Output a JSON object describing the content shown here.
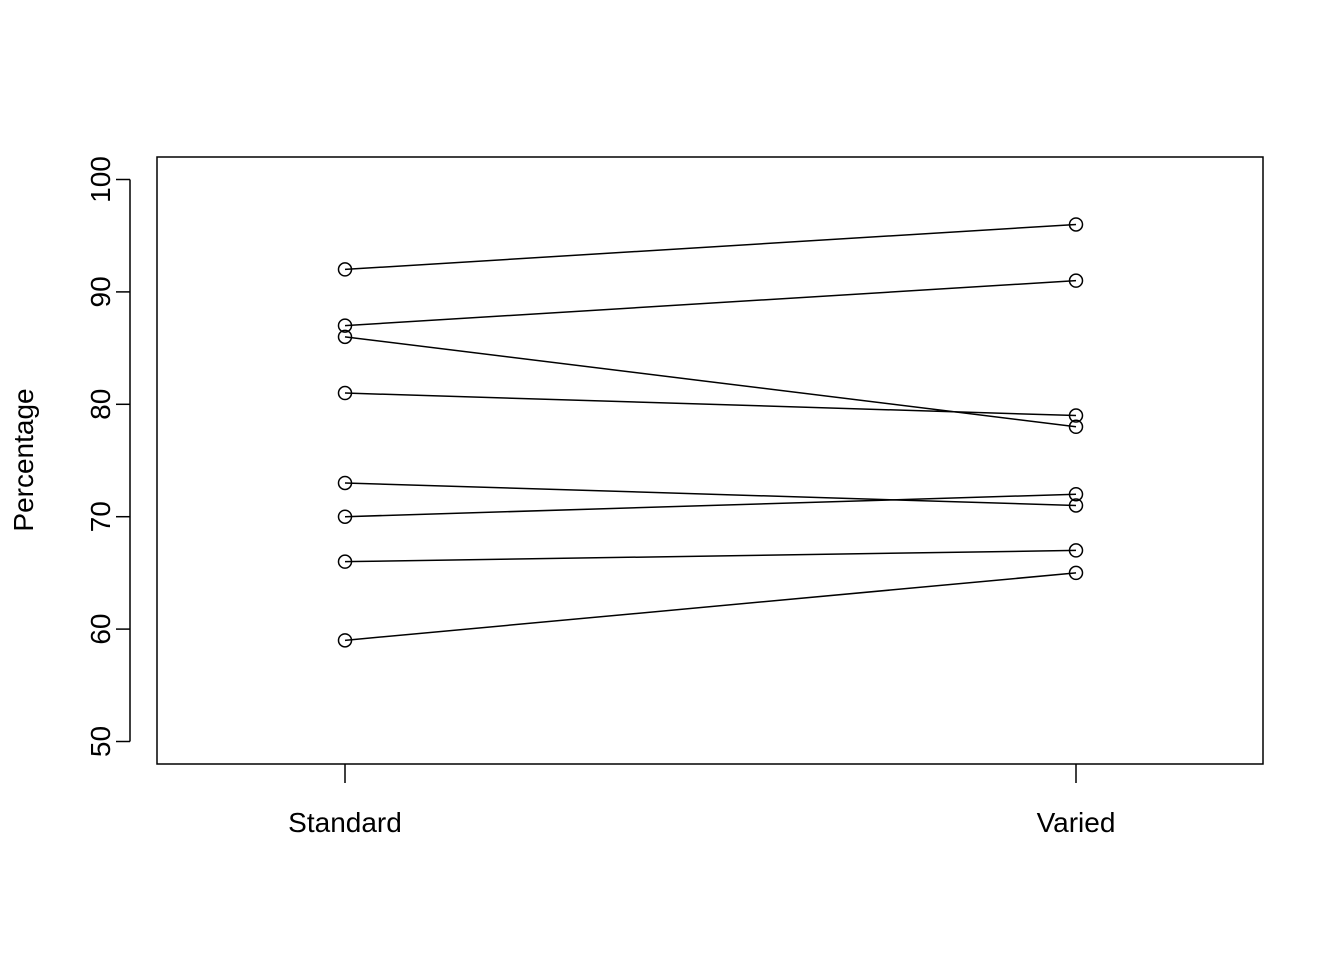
{
  "chart_data": {
    "type": "line",
    "categories": [
      "Standard",
      "Varied"
    ],
    "ylabel": "Percentage",
    "xlabel": "",
    "ylim": [
      50,
      100
    ],
    "y_ticks": [
      50,
      60,
      70,
      80,
      90,
      100
    ],
    "grid": false,
    "legend": "none",
    "marker": "open-circle",
    "line_color": "#000000",
    "series": [
      {
        "values": [
          92,
          96
        ]
      },
      {
        "values": [
          87,
          91
        ]
      },
      {
        "values": [
          86,
          78
        ]
      },
      {
        "values": [
          81,
          79
        ]
      },
      {
        "values": [
          73,
          71
        ]
      },
      {
        "values": [
          70,
          72
        ]
      },
      {
        "values": [
          66,
          67
        ]
      },
      {
        "values": [
          59,
          65
        ]
      }
    ]
  }
}
